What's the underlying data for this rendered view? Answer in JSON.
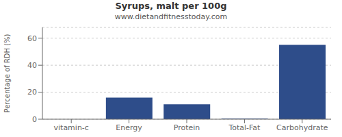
{
  "chart_data": {
    "type": "bar",
    "title": "Syrups, malt per 100g",
    "subtitle": "www.dietandfitnesstoday.com",
    "categories": [
      "vitamin-c",
      "Energy",
      "Protein",
      "Total-Fat",
      "Carbohydrate"
    ],
    "values": [
      0,
      16,
      11,
      0.5,
      55
    ],
    "color": "#2e4d8a",
    "ylabel": "Percentage of RDH (%)",
    "ylim": [
      0,
      68
    ],
    "yticks": [
      0,
      20,
      40,
      60
    ],
    "grid": true
  }
}
